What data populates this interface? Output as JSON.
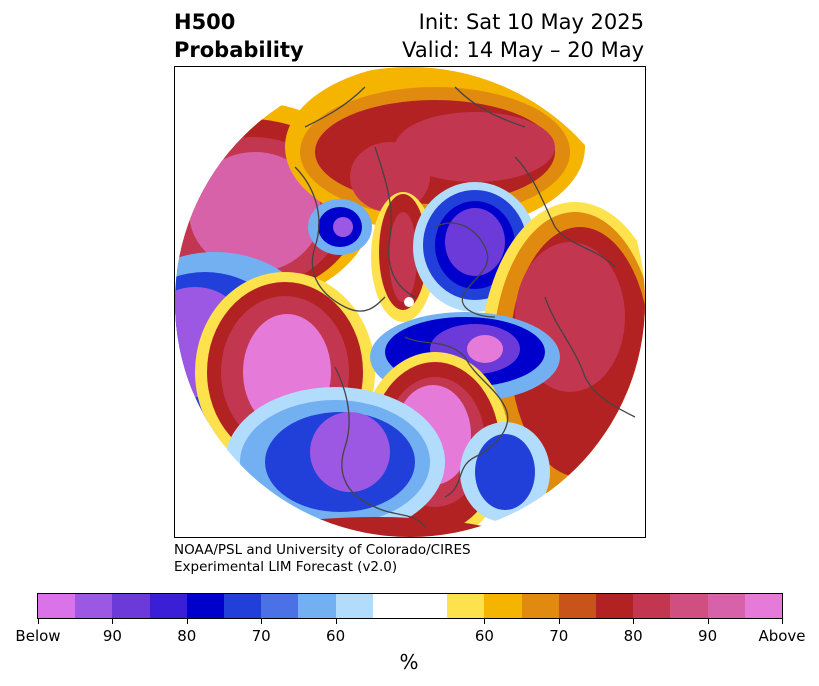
{
  "title": {
    "left_lines": [
      "H500",
      "Probability"
    ],
    "right_lines": [
      "Init: Sat 10 May 2025",
      "Valid: 14 May – 20 May"
    ]
  },
  "credits": {
    "line1": "NOAA/PSL and University of Colorado/CIRES",
    "line2": "Experimental LIM Forecast (v2.0)"
  },
  "colorbar": {
    "colors": [
      "#da72e8",
      "#9c58e2",
      "#6b3ad8",
      "#3a1fd6",
      "#0000cd",
      "#2140da",
      "#4a72e6",
      "#72b0f2",
      "#b2dcfb",
      "#ffffff",
      "#ffffff",
      "#fde24e",
      "#f4b400",
      "#e08a10",
      "#c8541a",
      "#b22222",
      "#c23650",
      "#d04e80",
      "#d862aa",
      "#e57ad8"
    ],
    "tick_labels": [
      "Below",
      "90",
      "80",
      "70",
      "60",
      "60",
      "70",
      "80",
      "90",
      "Above"
    ],
    "units": "%"
  },
  "map": {
    "legend_colors": {
      "below_strong": "#e27ad8",
      "below_mid": "#8a4ad8",
      "blue_dark": "#0000cd",
      "blue_mid": "#2850e0",
      "blue_light": "#72b0f2",
      "blue_pale": "#b2dcfb",
      "yellow": "#fde24e",
      "gold": "#f4b400",
      "orange": "#e08a10",
      "red_dark": "#b22222",
      "red_mid": "#c23650",
      "magenta": "#d862aa",
      "above_strong": "#e57ad8"
    }
  }
}
